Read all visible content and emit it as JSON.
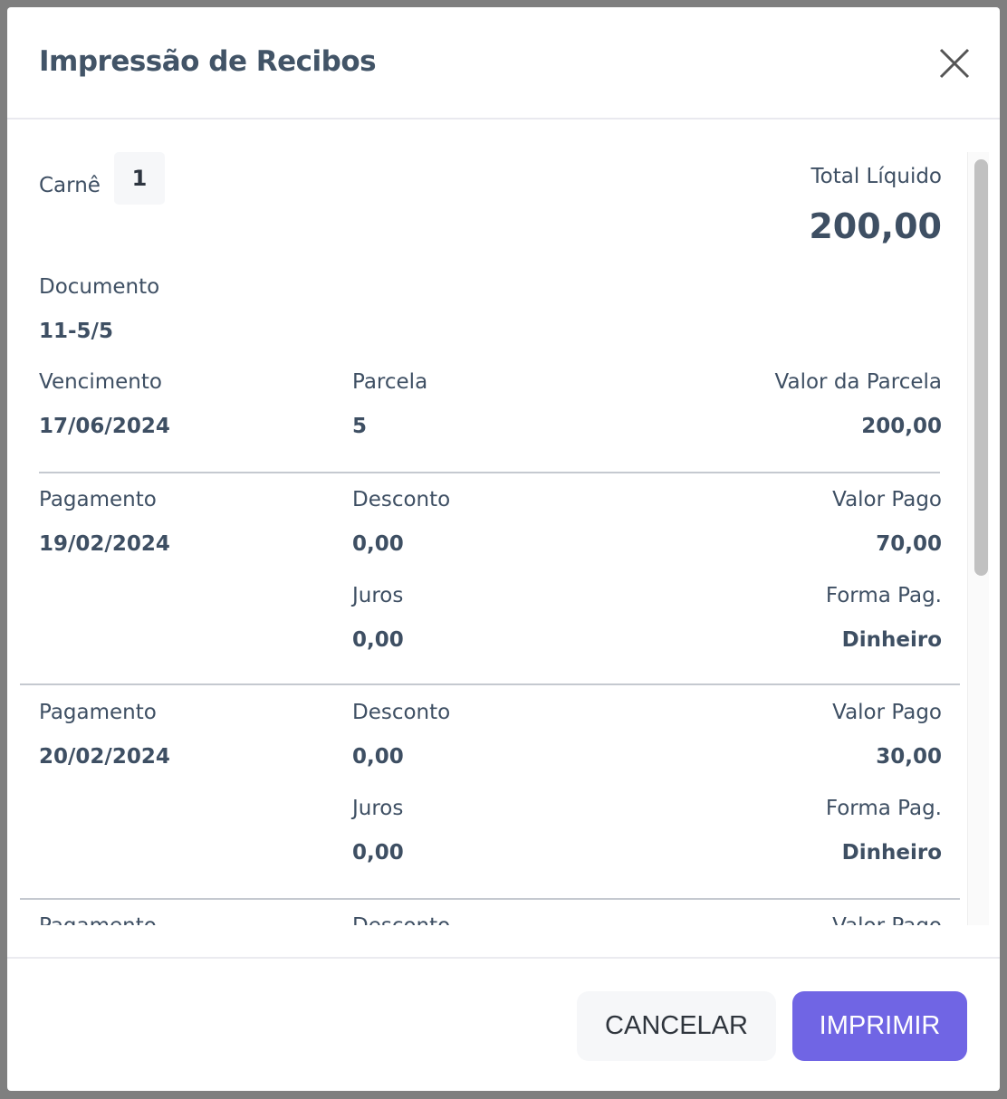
{
  "modal": {
    "title": "Impressão de Recibos",
    "close_icon": "close-icon"
  },
  "summary": {
    "carne_label": "Carnê",
    "carne_value": "1",
    "total_label": "Total Líquido",
    "total_value": "200,00",
    "documento_label": "Documento",
    "documento_value": "11-5/5",
    "vencimento_label": "Vencimento",
    "vencimento_value": "17/06/2024",
    "parcela_label": "Parcela",
    "parcela_value": "5",
    "valor_parcela_label": "Valor da Parcela",
    "valor_parcela_value": "200,00"
  },
  "payments": [
    {
      "pagamento_label": "Pagamento",
      "pagamento": "19/02/2024",
      "desconto_label": "Desconto",
      "desconto": "0,00",
      "valor_pago_label": "Valor Pago",
      "valor_pago": "70,00",
      "juros_label": "Juros",
      "juros": "0,00",
      "forma_label": "Forma Pag.",
      "forma": "Dinheiro"
    },
    {
      "pagamento_label": "Pagamento",
      "pagamento": "20/02/2024",
      "desconto_label": "Desconto",
      "desconto": "0,00",
      "valor_pago_label": "Valor Pago",
      "valor_pago": "30,00",
      "juros_label": "Juros",
      "juros": "0,00",
      "forma_label": "Forma Pag.",
      "forma": "Dinheiro"
    },
    {
      "pagamento_label": "Pagamento",
      "desconto_label": "Desconto",
      "valor_pago_label": "Valor Pago"
    }
  ],
  "footer": {
    "cancel_label": "CANCELAR",
    "print_label": "IMPRIMIR"
  },
  "colors": {
    "primary": "#7065e4",
    "text": "#3e4f63",
    "backdrop": "#7f7f7f"
  }
}
